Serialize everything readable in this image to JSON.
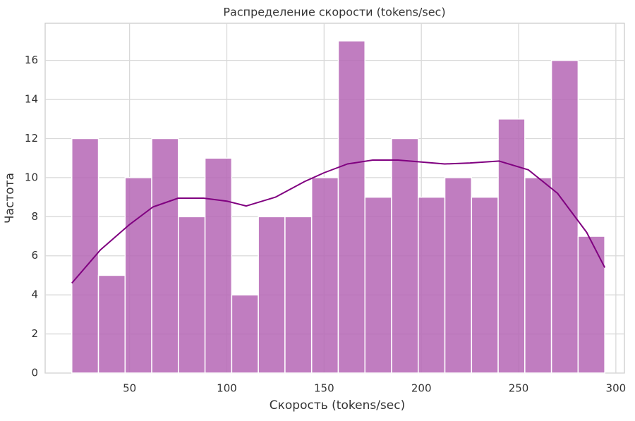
{
  "chart_data": {
    "type": "histogram",
    "title": "Распределение скорости (tokens/sec)",
    "xlabel": "Скорость (tokens/sec)",
    "ylabel": "Частота",
    "bins": [
      20.3,
      34,
      47.7,
      61.4,
      75.1,
      88.8,
      102.5,
      116.2,
      129.9,
      143.6,
      157.3,
      171,
      184.7,
      198.4,
      212.1,
      225.8,
      239.5,
      253.2,
      266.9,
      280.6,
      294.3
    ],
    "values": [
      12,
      5,
      10,
      12,
      8,
      11,
      4,
      8,
      8,
      10,
      17,
      9,
      12,
      9,
      10,
      9,
      13,
      10,
      16,
      7
    ],
    "color": "#b566b5",
    "kde": {
      "color": "#800080",
      "x": [
        20.3,
        35,
        50,
        62,
        75,
        88,
        100,
        110,
        125,
        140,
        150,
        162,
        175,
        188,
        200,
        212,
        225,
        240,
        255,
        270,
        285,
        294.3
      ],
      "values": [
        4.6,
        6.3,
        7.6,
        8.5,
        8.95,
        8.95,
        8.8,
        8.55,
        9.0,
        9.8,
        10.25,
        10.7,
        10.9,
        10.9,
        10.8,
        10.7,
        10.75,
        10.85,
        10.4,
        9.2,
        7.2,
        5.4
      ]
    },
    "xlim": [
      6.6,
      304.4
    ],
    "ylim": [
      0,
      17.9
    ],
    "xticks": [
      50,
      100,
      150,
      200,
      250,
      300
    ],
    "yticks": [
      0,
      2,
      4,
      6,
      8,
      10,
      12,
      14,
      16
    ],
    "grid": true
  }
}
